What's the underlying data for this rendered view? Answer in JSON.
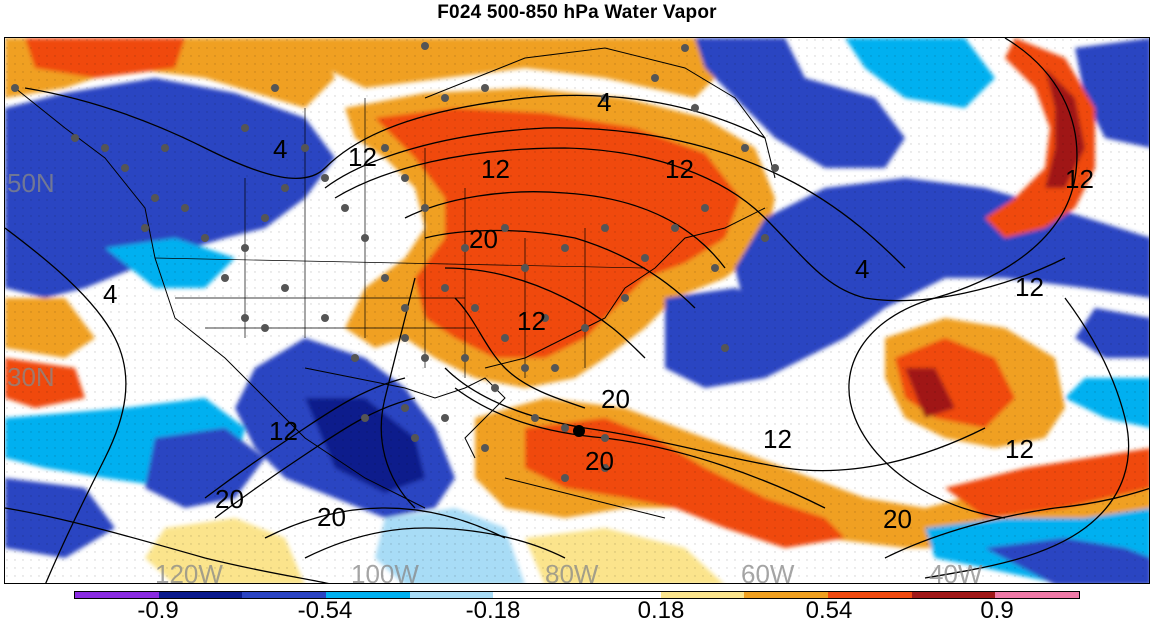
{
  "title": "F024 500-850 hPa Water Vapor",
  "colors": {
    "deep_purple": "#8a2be2",
    "navy": "#0a1a8c",
    "blue": "#2b44c2",
    "cyan": "#00b0f0",
    "light_blue": "#a8dcf6",
    "white": "#ffffff",
    "light_yellow": "#fbe48c",
    "orange": "#f0a020",
    "red_orange": "#f04a10",
    "dark_red": "#a01818",
    "pink": "#f07aa8",
    "station_dot": "#555555",
    "contour": "#000000"
  },
  "colorbar": {
    "segments": [
      "#8a2be2",
      "#0a1a8c",
      "#2b44c2",
      "#00b0f0",
      "#a8dcf6",
      "#ffffff",
      "#ffffff",
      "#fbe48c",
      "#f0a020",
      "#f04a10",
      "#a01818",
      "#f07aa8"
    ],
    "labels": [
      "-0.9",
      "-0.54",
      "-0.18",
      "0.18",
      "0.54",
      "0.9"
    ]
  },
  "latitude_labels": [
    "50N",
    "30N"
  ],
  "longitude_labels": [
    "120W",
    "100W",
    "80W",
    "60W",
    "40W"
  ],
  "contour_labels": [
    "4",
    "12",
    "4",
    "12",
    "4",
    "12",
    "4",
    "12",
    "20",
    "12",
    "20",
    "20",
    "20",
    "12",
    "12",
    "20",
    "12",
    "12",
    "20"
  ]
}
